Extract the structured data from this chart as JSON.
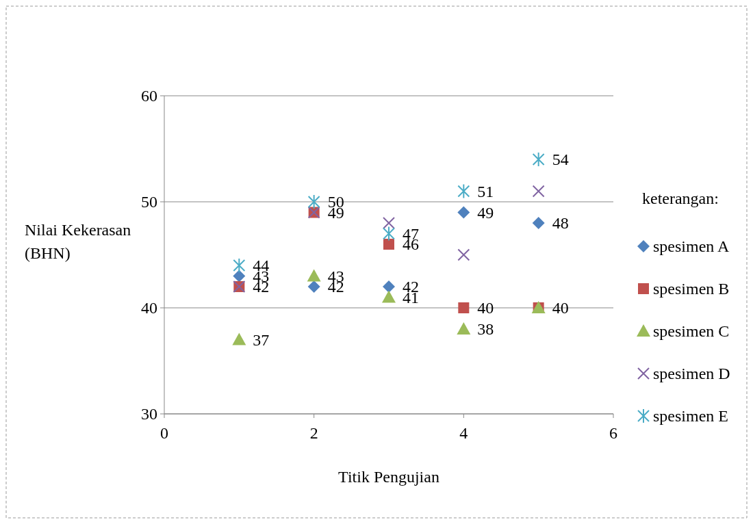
{
  "chart_data": {
    "type": "scatter",
    "xlabel": "Titik  Pengujian",
    "ylabel": "Nilai Kekerasan\n(BHN)",
    "legend_title": "keterangan:",
    "x": [
      1,
      2,
      3,
      4,
      5
    ],
    "series": [
      {
        "name": "spesimen A",
        "color": "#4f81bd",
        "marker": "diamond",
        "values": [
          43,
          42,
          42,
          49,
          48
        ]
      },
      {
        "name": "spesimen B",
        "color": "#c0504d",
        "marker": "square",
        "values": [
          42,
          49,
          46,
          40,
          40
        ]
      },
      {
        "name": "spesimen C",
        "color": "#9bbb59",
        "marker": "triangle",
        "values": [
          37,
          43,
          41,
          38,
          40
        ],
        "value_labels": [
          "37",
          "43",
          "41",
          "38",
          null
        ]
      },
      {
        "name": "spesimen D",
        "color": "#8064a2",
        "marker": "cross",
        "values": [
          42,
          49,
          48,
          45,
          51
        ],
        "value_labels": [
          null,
          null,
          null,
          null,
          null
        ]
      },
      {
        "name": "spesimen E",
        "color": "#4bacc6",
        "values": [
          44,
          50,
          47,
          51,
          54
        ]
      }
    ],
    "xlim": [
      0,
      6
    ],
    "xticks": [
      0,
      2,
      4,
      6
    ],
    "ylim": [
      30,
      60
    ],
    "yticks": [
      30,
      40,
      50,
      60
    ],
    "grid": "y",
    "legend": "right",
    "data_labels": true
  }
}
